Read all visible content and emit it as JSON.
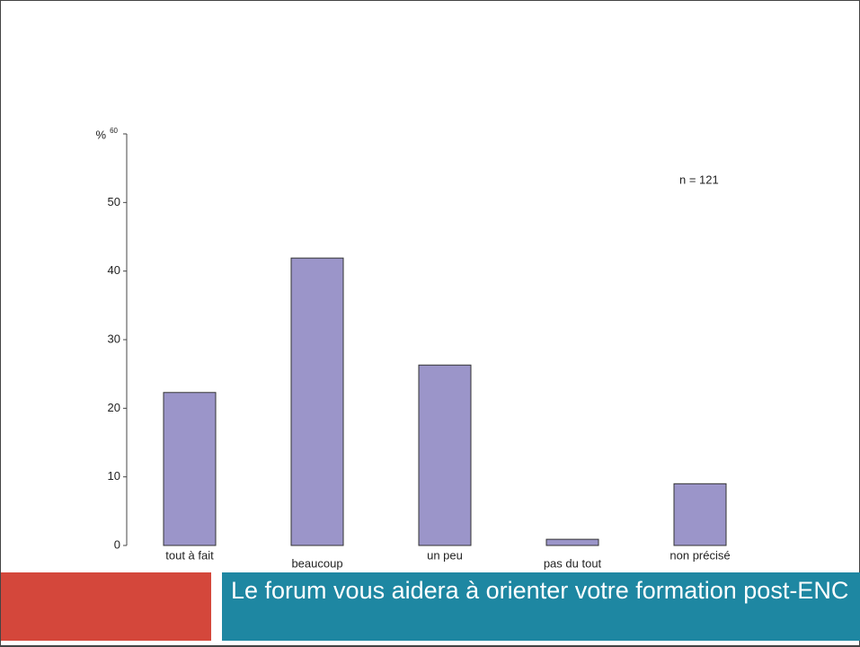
{
  "chart_data": {
    "type": "bar",
    "title": "Le forum vous aidera à orienter votre formation post-ENC",
    "y_label": "%",
    "annotation": "n = 121",
    "categories": [
      "tout à fait",
      "beaucoup",
      "un peu",
      "pas du tout",
      "non précisé"
    ],
    "values": [
      22.3,
      41.9,
      26.3,
      0.9,
      9.0
    ],
    "color": "#9b95c9",
    "ylim": [
      0,
      60
    ],
    "yticks": [
      0,
      10,
      20,
      30,
      40,
      50,
      60
    ],
    "grid": false
  }
}
